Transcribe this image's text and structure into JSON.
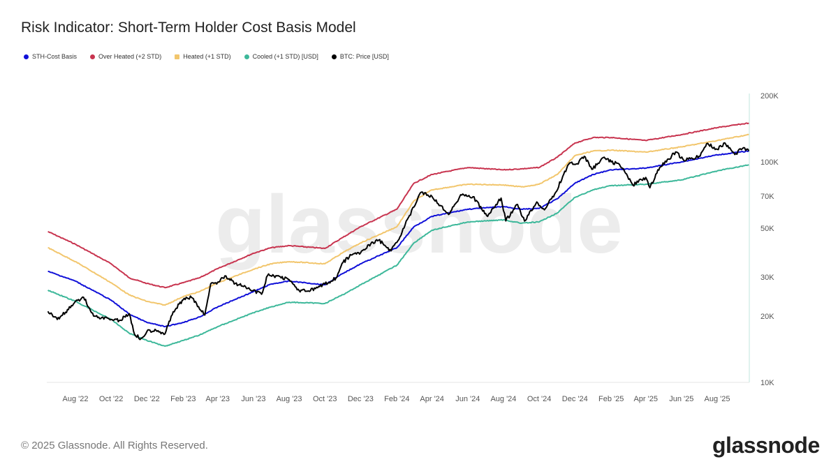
{
  "title": "Risk Indicator: Short-Term Holder Cost Basis Model",
  "footer": "© 2025 Glassnode. All Rights Reserved.",
  "logo": "glassnode",
  "watermark": "glassnode",
  "chart_data": {
    "type": "line",
    "title": "Risk Indicator: Short-Term Holder Cost Basis Model",
    "y_scale": "log",
    "ylim": [
      10000,
      200000
    ],
    "xlim": [
      "2022-06-15",
      "2025-09-24"
    ],
    "grid": false,
    "legend_position": "top-left",
    "y_ticks": [
      {
        "value": 10000,
        "label": "10K"
      },
      {
        "value": 20000,
        "label": "20K"
      },
      {
        "value": 30000,
        "label": "30K"
      },
      {
        "value": 50000,
        "label": "50K"
      },
      {
        "value": 70000,
        "label": "70K"
      },
      {
        "value": 100000,
        "label": "100K"
      },
      {
        "value": 200000,
        "label": "200K"
      }
    ],
    "x_ticks": [
      {
        "date": "2022-08-01",
        "label": "Aug '22"
      },
      {
        "date": "2022-10-01",
        "label": "Oct '22"
      },
      {
        "date": "2022-12-01",
        "label": "Dec '22"
      },
      {
        "date": "2023-02-01",
        "label": "Feb '23"
      },
      {
        "date": "2023-04-01",
        "label": "Apr '23"
      },
      {
        "date": "2023-06-01",
        "label": "Jun '23"
      },
      {
        "date": "2023-08-01",
        "label": "Aug '23"
      },
      {
        "date": "2023-10-01",
        "label": "Oct '23"
      },
      {
        "date": "2023-12-01",
        "label": "Dec '23"
      },
      {
        "date": "2024-02-01",
        "label": "Feb '24"
      },
      {
        "date": "2024-04-01",
        "label": "Apr '24"
      },
      {
        "date": "2024-06-01",
        "label": "Jun '24"
      },
      {
        "date": "2024-08-01",
        "label": "Aug '24"
      },
      {
        "date": "2024-10-01",
        "label": "Oct '24"
      },
      {
        "date": "2024-12-01",
        "label": "Dec '24"
      },
      {
        "date": "2025-02-01",
        "label": "Feb '25"
      },
      {
        "date": "2025-04-01",
        "label": "Apr '25"
      },
      {
        "date": "2025-06-01",
        "label": "Jun '25"
      },
      {
        "date": "2025-08-01",
        "label": "Aug '25"
      }
    ],
    "band_dates": [
      "2022-06-15",
      "2022-08-01",
      "2022-10-01",
      "2022-11-01",
      "2022-12-01",
      "2023-01-01",
      "2023-02-01",
      "2023-03-01",
      "2023-04-01",
      "2023-06-01",
      "2023-07-01",
      "2023-08-01",
      "2023-10-01",
      "2023-11-01",
      "2023-12-01",
      "2024-02-01",
      "2024-03-01",
      "2024-04-01",
      "2024-06-01",
      "2024-08-01",
      "2024-09-01",
      "2024-10-01",
      "2024-11-01",
      "2024-12-01",
      "2025-01-01",
      "2025-02-01",
      "2025-04-01",
      "2025-06-01",
      "2025-08-01",
      "2025-09-24"
    ],
    "series": [
      {
        "name": "Over Heated (+2 STD)",
        "color": "#c8344f",
        "key": "overheated",
        "values": [
          48300,
          42300,
          34500,
          29800,
          28100,
          26900,
          28300,
          29800,
          32800,
          38500,
          40800,
          41700,
          40500,
          45500,
          50800,
          61000,
          80000,
          87700,
          94300,
          92000,
          93000,
          94300,
          105000,
          121700,
          129000,
          129000,
          125000,
          133000,
          143000,
          150000
        ]
      },
      {
        "name": "Heated (+1 STD)",
        "color": "#f2c66d",
        "key": "heated",
        "values": [
          40800,
          35300,
          28300,
          24900,
          23300,
          22400,
          24500,
          25800,
          28300,
          32600,
          34500,
          35300,
          34500,
          38800,
          42900,
          50800,
          66500,
          74700,
          79200,
          78600,
          77000,
          79200,
          87700,
          106700,
          112000,
          113000,
          110700,
          117000,
          125000,
          133000
        ]
      },
      {
        "name": "STH-Cost Basis",
        "color": "#1010d8",
        "key": "sth",
        "values": [
          31900,
          28800,
          23600,
          20400,
          18700,
          17900,
          18700,
          19800,
          22000,
          25800,
          27900,
          28800,
          27700,
          31200,
          34500,
          40800,
          50800,
          56600,
          61000,
          62700,
          61000,
          61500,
          68000,
          80000,
          87700,
          92000,
          93700,
          100000,
          107600,
          112000
        ]
      },
      {
        "name": "Cooled (+1 STD) [USD]",
        "color": "#3db89a",
        "key": "cooled",
        "values": [
          26200,
          23300,
          19300,
          16700,
          15500,
          14600,
          15500,
          16400,
          17900,
          20700,
          22000,
          23100,
          22800,
          25000,
          27700,
          34000,
          42900,
          49000,
          53400,
          54600,
          52700,
          53400,
          58700,
          69000,
          74700,
          78000,
          79200,
          82800,
          91000,
          97000
        ]
      },
      {
        "name": "BTC: Price [USD]",
        "color": "#000000",
        "key": "price",
        "dates": [
          "2022-06-15",
          "2022-07-01",
          "2022-07-15",
          "2022-08-01",
          "2022-08-15",
          "2022-09-01",
          "2022-09-15",
          "2022-10-01",
          "2022-10-15",
          "2022-11-01",
          "2022-11-10",
          "2022-11-21",
          "2022-12-01",
          "2022-12-15",
          "2023-01-01",
          "2023-01-15",
          "2023-02-01",
          "2023-02-15",
          "2023-03-10",
          "2023-03-20",
          "2023-04-01",
          "2023-04-15",
          "2023-05-01",
          "2023-05-15",
          "2023-06-15",
          "2023-06-25",
          "2023-07-15",
          "2023-08-01",
          "2023-08-18",
          "2023-09-01",
          "2023-09-15",
          "2023-10-01",
          "2023-10-20",
          "2023-11-01",
          "2023-11-15",
          "2023-12-01",
          "2023-12-15",
          "2024-01-01",
          "2024-01-22",
          "2024-02-01",
          "2024-02-15",
          "2024-03-01",
          "2024-03-14",
          "2024-04-01",
          "2024-04-15",
          "2024-05-01",
          "2024-05-20",
          "2024-06-10",
          "2024-06-25",
          "2024-07-05",
          "2024-07-28",
          "2024-08-05",
          "2024-08-25",
          "2024-09-06",
          "2024-09-27",
          "2024-10-10",
          "2024-10-29",
          "2024-11-12",
          "2024-11-22",
          "2024-12-05",
          "2024-12-17",
          "2024-12-30",
          "2025-01-20",
          "2025-02-01",
          "2025-02-15",
          "2025-03-01",
          "2025-03-10",
          "2025-04-01",
          "2025-04-08",
          "2025-04-25",
          "2025-05-10",
          "2025-05-22",
          "2025-06-05",
          "2025-06-20",
          "2025-07-01",
          "2025-07-14",
          "2025-08-01",
          "2025-08-14",
          "2025-08-31",
          "2025-09-15",
          "2025-09-24"
        ],
        "values": [
          21000,
          19300,
          20800,
          23300,
          24300,
          20000,
          19700,
          19300,
          19100,
          20500,
          16500,
          15800,
          17000,
          17400,
          16600,
          20900,
          23700,
          24300,
          20200,
          28000,
          28500,
          30400,
          28100,
          27200,
          25100,
          30500,
          30300,
          29200,
          26100,
          25900,
          26600,
          27900,
          29700,
          35000,
          37800,
          38700,
          42100,
          44200,
          39500,
          43100,
          51800,
          62400,
          73000,
          69700,
          63400,
          58200,
          71000,
          69500,
          61000,
          56600,
          68500,
          54000,
          64100,
          53900,
          65800,
          60600,
          72700,
          88000,
          98900,
          98000,
          106000,
          92500,
          105000,
          100000,
          97500,
          86000,
          78500,
          85000,
          76300,
          94500,
          103000,
          111000,
          101500,
          103500,
          106000,
          121000,
          114000,
          122000,
          108000,
          116000,
          112000
        ]
      }
    ]
  }
}
